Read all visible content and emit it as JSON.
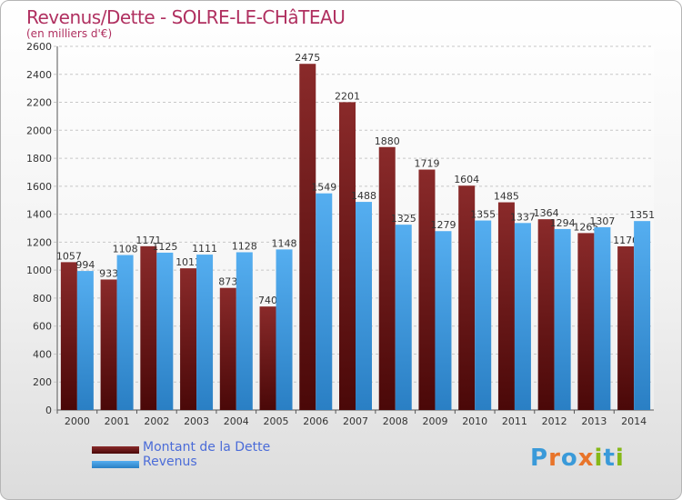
{
  "chart_data": {
    "type": "bar",
    "title": "Revenus/Dette - SOLRE-LE-CHâTEAU",
    "subtitle": "(en milliers d'€)",
    "categories": [
      "2000",
      "2001",
      "2002",
      "2003",
      "2004",
      "2005",
      "2006",
      "2007",
      "2008",
      "2009",
      "2010",
      "2011",
      "2012",
      "2013",
      "2014"
    ],
    "series": [
      {
        "name": "Montant de la Dette",
        "color": "#7a1f1f",
        "values": [
          1057,
          933,
          1171,
          1013,
          873,
          740,
          2475,
          2201,
          1880,
          1719,
          1604,
          1485,
          1364,
          1265,
          1170
        ]
      },
      {
        "name": "Revenus",
        "color": "#3399dd",
        "values": [
          994,
          1108,
          1125,
          1111,
          1128,
          1148,
          1549,
          1488,
          1325,
          1279,
          1355,
          1337,
          1294,
          1307,
          1351
        ]
      }
    ],
    "ylim": [
      0,
      2600
    ],
    "yticks": [
      0,
      200,
      400,
      600,
      800,
      1000,
      1200,
      1400,
      1600,
      1800,
      2000,
      2200,
      2400,
      2600
    ],
    "grid": true,
    "legend_position": "bottom-left"
  },
  "logo": {
    "text": "Proxiti",
    "letters": [
      "P",
      "r",
      "o",
      "x",
      "i",
      "t",
      "i"
    ],
    "colors": [
      "#3a9ad9",
      "#e8742a",
      "#3a9ad9",
      "#e8742a",
      "#86b817",
      "#3a9ad9",
      "#86b817"
    ]
  }
}
